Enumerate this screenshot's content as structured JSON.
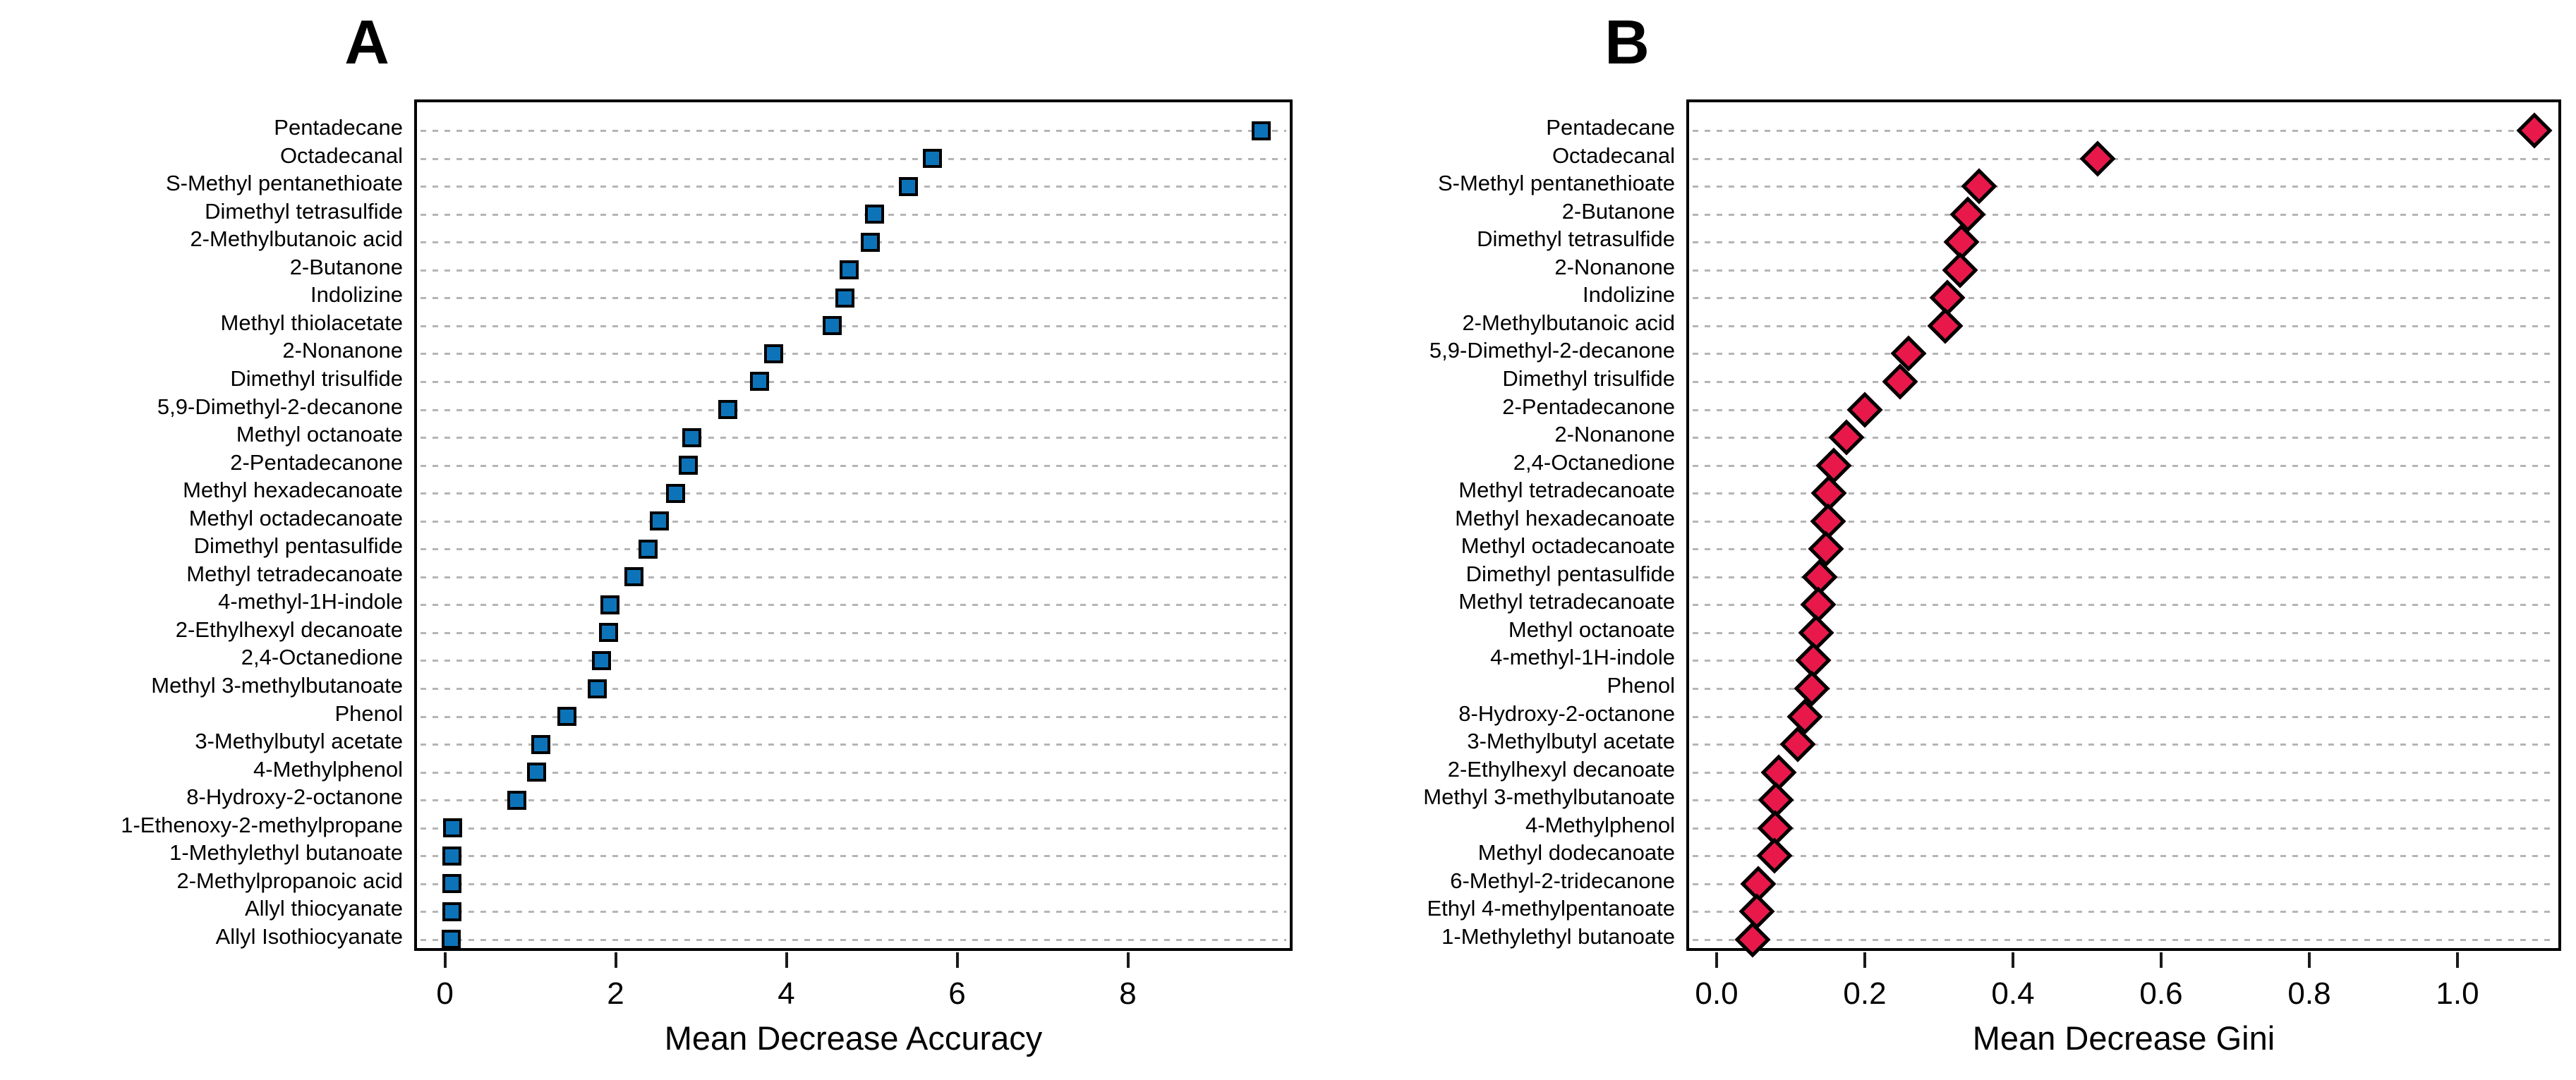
{
  "figure": {
    "background": "#ffffff",
    "gridline_color": "#b5b5b5",
    "kind": "random-forest variable importance dot plots"
  },
  "chart_data": [
    {
      "type": "scatter",
      "panel": "A",
      "title": "A",
      "xlabel": "Mean Decrease Accuracy",
      "marker": "square",
      "marker_fill": "#0d73b8",
      "marker_border": "#000000",
      "grid": "dotted-horizontal",
      "legend": "none",
      "xlim": [
        -0.36,
        9.93
      ],
      "xticks": [
        0,
        2,
        4,
        6,
        8
      ],
      "xtick_labels": [
        "0",
        "2",
        "4",
        "6",
        "8"
      ],
      "categories": [
        "Pentadecane",
        "Octadecanal",
        "S-Methyl pentanethioate",
        "Dimethyl tetrasulfide",
        "2-Methylbutanoic acid",
        "2-Butanone",
        "Indolizine",
        "Methyl thiolacetate",
        "2-Nonanone",
        "Dimethyl trisulfide",
        "5,9-Dimethyl-2-decanone",
        "Methyl octanoate",
        "2-Pentadecanone",
        "Methyl hexadecanoate",
        "Methyl octadecanoate",
        "Dimethyl pentasulfide",
        "Methyl tetradecanoate",
        "4-methyl-1H-indole",
        "2-Ethylhexyl decanoate",
        "2,4-Octanedione",
        "Methyl 3-methylbutanoate",
        "Phenol",
        "3-Methylbutyl acetate",
        "4-Methylphenol",
        "8-Hydroxy-2-octanone",
        "1-Ethenoxy-2-methylpropane",
        "1-Methylethyl butanoate",
        "2-Methylpropanoic acid",
        "Allyl thiocyanate",
        "Allyl Isothiocyanate"
      ],
      "values": [
        9.53,
        5.68,
        5.4,
        5.0,
        4.95,
        4.7,
        4.65,
        4.5,
        3.82,
        3.65,
        3.28,
        2.86,
        2.82,
        2.67,
        2.48,
        2.35,
        2.18,
        1.9,
        1.88,
        1.8,
        1.75,
        1.4,
        1.09,
        1.04,
        0.81,
        0.06,
        0.05,
        0.05,
        0.05,
        0.04
      ]
    },
    {
      "type": "scatter",
      "panel": "B",
      "title": "B",
      "xlabel": "Mean Decrease Gini",
      "marker": "diamond",
      "marker_fill": "#e8194a",
      "marker_border": "#000000",
      "grid": "dotted-horizontal",
      "legend": "none",
      "xlim": [
        -0.041,
        1.14
      ],
      "xticks": [
        0.0,
        0.2,
        0.4,
        0.6,
        0.8,
        1.0
      ],
      "xtick_labels": [
        "0.0",
        "0.2",
        "0.4",
        "0.6",
        "0.8",
        "1.0"
      ],
      "categories": [
        "Pentadecane",
        "Octadecanal",
        "S-Methyl pentanethioate",
        "2-Butanone",
        "Dimethyl tetrasulfide",
        "2-Nonanone",
        "Indolizine",
        "2-Methylbutanoic acid",
        "5,9-Dimethyl-2-decanone",
        "Dimethyl trisulfide",
        "2-Pentadecanone",
        "2-Nonanone",
        "2,4-Octanedione",
        "Methyl tetradecanoate",
        "Methyl hexadecanoate",
        "Methyl octadecanoate",
        "Dimethyl pentasulfide",
        "Methyl tetradecanoate",
        "Methyl octanoate",
        "4-methyl-1H-indole",
        "Phenol",
        "8-Hydroxy-2-octanone",
        "3-Methylbutyl acetate",
        "2-Ethylhexyl decanoate",
        "Methyl 3-methylbutanoate",
        "4-Methylphenol",
        "Methyl dodecanoate",
        "6-Methyl-2-tridecanone",
        "Ethyl 4-methylpentanoate",
        "1-Methylethyl butanoate"
      ],
      "values": [
        1.1,
        0.51,
        0.35,
        0.335,
        0.327,
        0.325,
        0.308,
        0.305,
        0.255,
        0.244,
        0.196,
        0.171,
        0.154,
        0.148,
        0.147,
        0.144,
        0.135,
        0.133,
        0.13,
        0.127,
        0.125,
        0.115,
        0.106,
        0.08,
        0.076,
        0.075,
        0.074,
        0.052,
        0.05,
        0.045
      ]
    }
  ]
}
